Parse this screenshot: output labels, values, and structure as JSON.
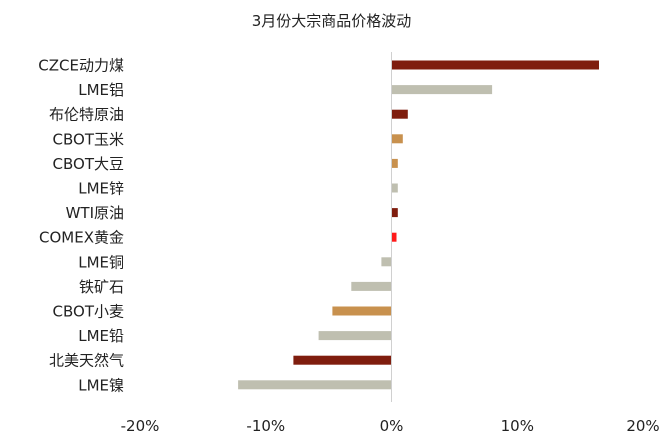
{
  "chart_data": {
    "type": "bar",
    "orientation": "horizontal",
    "title": "3月份大宗商品价格波动",
    "xlabel": "",
    "ylabel": "",
    "xlim": [
      -20,
      20
    ],
    "x_ticks": [
      "-20%",
      "-10%",
      "0%",
      "10%",
      "20%"
    ],
    "x_tick_values": [
      -20,
      -10,
      0,
      10,
      20
    ],
    "grid": false,
    "legend": "none",
    "categories": [
      "CZCE动力煤",
      "LME铝",
      "布伦特原油",
      "CBOT玉米",
      "CBOT大豆",
      "LME锌",
      "WTI原油",
      "COMEX黄金",
      "LME铜",
      "铁矿石",
      "CBOT小麦",
      "LME铅",
      "北美天然气",
      "LME镍"
    ],
    "values": [
      16.5,
      8.0,
      1.3,
      0.9,
      0.5,
      0.5,
      0.5,
      0.4,
      -0.8,
      -3.2,
      -4.7,
      -5.8,
      -7.8,
      -12.2
    ],
    "colors": [
      "#7f1d0e",
      "#bfbfb0",
      "#7f1d0e",
      "#c8914e",
      "#c8914e",
      "#bfbfb0",
      "#7f1d0e",
      "#ff1a1a",
      "#bfbfb0",
      "#bfbfb0",
      "#c8914e",
      "#bfbfb0",
      "#7f1d0e",
      "#bfbfb0"
    ]
  }
}
